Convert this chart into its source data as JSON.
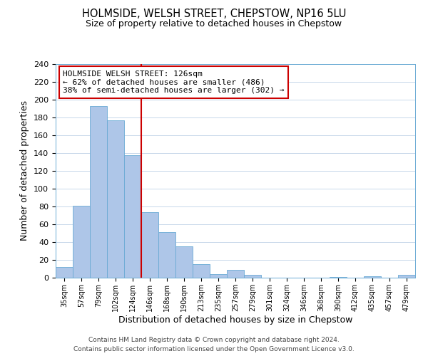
{
  "title": "HOLMSIDE, WELSH STREET, CHEPSTOW, NP16 5LU",
  "subtitle": "Size of property relative to detached houses in Chepstow",
  "xlabel": "Distribution of detached houses by size in Chepstow",
  "ylabel": "Number of detached properties",
  "bar_labels": [
    "35sqm",
    "57sqm",
    "79sqm",
    "102sqm",
    "124sqm",
    "146sqm",
    "168sqm",
    "190sqm",
    "213sqm",
    "235sqm",
    "257sqm",
    "279sqm",
    "301sqm",
    "324sqm",
    "346sqm",
    "368sqm",
    "390sqm",
    "412sqm",
    "435sqm",
    "457sqm",
    "479sqm"
  ],
  "bar_values": [
    12,
    81,
    193,
    177,
    138,
    74,
    51,
    35,
    15,
    4,
    9,
    3,
    0,
    0,
    0,
    0,
    1,
    0,
    2,
    0,
    3
  ],
  "bar_color": "#aec6e8",
  "bar_edge_color": "#6aaad4",
  "bar_width": 1.0,
  "ylim": [
    0,
    240
  ],
  "yticks": [
    0,
    20,
    40,
    60,
    80,
    100,
    120,
    140,
    160,
    180,
    200,
    220,
    240
  ],
  "property_label": "HOLMSIDE WELSH STREET: 126sqm",
  "annotation_line1": "← 62% of detached houses are smaller (486)",
  "annotation_line2": "38% of semi-detached houses are larger (302) →",
  "annotation_box_color": "#ffffff",
  "annotation_box_edge": "#cc0000",
  "vline_color": "#cc0000",
  "background_color": "#ffffff",
  "grid_color": "#c8d8ea",
  "footer_line1": "Contains HM Land Registry data © Crown copyright and database right 2024.",
  "footer_line2": "Contains public sector information licensed under the Open Government Licence v3.0."
}
